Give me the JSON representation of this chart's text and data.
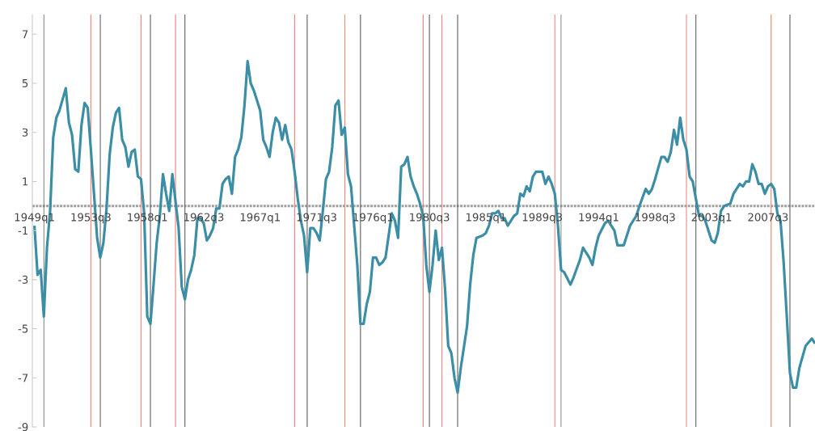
{
  "chart_data": {
    "type": "line",
    "xlim": [
      "1948-11",
      "2011-04"
    ],
    "ylim": [
      -9,
      7.8
    ],
    "xticks": [
      {
        "value": "1949-01",
        "label": "1949q1"
      },
      {
        "value": "1953-07",
        "label": "1953q3"
      },
      {
        "value": "1958-01",
        "label": "1958q1"
      },
      {
        "value": "1962-07",
        "label": "1962q3"
      },
      {
        "value": "1967-01",
        "label": "1967q1"
      },
      {
        "value": "1971-07",
        "label": "1971q3"
      },
      {
        "value": "1976-01",
        "label": "1976q1"
      },
      {
        "value": "1980-07",
        "label": "1980q3"
      },
      {
        "value": "1985-01",
        "label": "1985q1"
      },
      {
        "value": "1989-07",
        "label": "1989q3"
      },
      {
        "value": "1994-01",
        "label": "1994q1"
      },
      {
        "value": "1998-07",
        "label": "1998q3"
      },
      {
        "value": "2003-01",
        "label": "2003q1"
      },
      {
        "value": "2007-07",
        "label": "2007q3"
      }
    ],
    "yticks": [
      -9,
      -7,
      -5,
      -3,
      -1,
      1,
      3,
      5,
      7
    ],
    "series": [
      {
        "color": "#3b8ea5",
        "x": [
          "1949-01",
          "1949-04",
          "1949-07",
          "1949-10",
          "1950-01",
          "1950-04",
          "1950-07",
          "1950-10",
          "1951-01",
          "1951-07",
          "1951-10",
          "1952-01",
          "1952-04",
          "1952-07",
          "1952-10",
          "1953-01",
          "1953-04",
          "1953-07",
          "1953-10",
          "1954-01",
          "1954-04",
          "1954-07",
          "1954-10",
          "1955-01",
          "1955-04",
          "1955-07",
          "1955-10",
          "1956-01",
          "1956-04",
          "1956-07",
          "1956-10",
          "1957-01",
          "1957-04",
          "1957-07",
          "1957-10",
          "1958-01",
          "1958-04",
          "1958-07",
          "1958-10",
          "1959-01",
          "1959-04",
          "1959-07",
          "1959-10",
          "1960-01",
          "1960-04",
          "1960-07",
          "1960-10",
          "1961-01",
          "1961-04",
          "1961-07",
          "1961-10",
          "1962-01",
          "1962-04",
          "1962-07",
          "1962-10",
          "1963-01",
          "1963-04",
          "1963-07",
          "1963-10",
          "1964-01",
          "1964-04",
          "1964-07",
          "1964-10",
          "1965-01",
          "1965-04",
          "1965-07",
          "1965-10",
          "1966-01",
          "1966-04",
          "1966-07",
          "1966-10",
          "1967-01",
          "1967-04",
          "1967-07",
          "1967-10",
          "1968-01",
          "1968-04",
          "1968-07",
          "1968-10",
          "1969-01",
          "1969-04",
          "1969-07",
          "1969-10",
          "1970-01",
          "1970-04",
          "1970-07",
          "1970-10",
          "1971-01",
          "1971-04",
          "1971-07",
          "1971-10",
          "1972-01",
          "1972-04",
          "1972-07",
          "1972-10",
          "1973-01",
          "1973-04",
          "1973-07",
          "1973-10",
          "1974-01",
          "1974-04",
          "1974-07",
          "1974-10",
          "1975-01",
          "1975-04",
          "1975-07",
          "1975-10",
          "1976-01",
          "1976-04",
          "1976-07",
          "1976-10",
          "1977-01",
          "1977-04",
          "1977-07",
          "1977-10",
          "1978-01",
          "1978-04",
          "1978-07",
          "1978-10",
          "1979-01",
          "1979-04",
          "1979-07",
          "1979-10",
          "1980-01",
          "1980-04",
          "1980-07",
          "1980-10",
          "1981-01",
          "1981-04",
          "1981-07",
          "1981-10",
          "1982-01",
          "1982-04",
          "1982-07",
          "1982-10",
          "1983-01",
          "1983-07",
          "1983-10",
          "1984-01",
          "1984-04",
          "1984-10",
          "1985-01",
          "1985-04",
          "1985-07",
          "1985-10",
          "1986-01",
          "1986-04",
          "1986-07",
          "1986-10",
          "1987-01",
          "1987-04",
          "1987-07",
          "1987-10",
          "1988-01",
          "1988-04",
          "1988-07",
          "1988-10",
          "1989-01",
          "1989-07",
          "1989-10",
          "1990-01",
          "1990-04",
          "1990-07",
          "1990-10",
          "1991-01",
          "1991-04",
          "1991-10",
          "1992-01",
          "1992-07",
          "1992-10",
          "1993-04",
          "1993-07",
          "1993-10",
          "1994-01",
          "1994-07",
          "1994-10",
          "1995-04",
          "1995-07",
          "1995-10",
          "1996-01",
          "1996-07",
          "1996-10",
          "1997-01",
          "1997-04",
          "1997-10",
          "1998-01",
          "1998-04",
          "1998-07",
          "1999-01",
          "1999-04",
          "1999-07",
          "1999-10",
          "2000-01",
          "2000-04",
          "2000-07",
          "2000-10",
          "2001-01",
          "2001-04",
          "2001-07",
          "2001-10",
          "2002-01",
          "2002-04",
          "2002-07",
          "2003-01",
          "2003-04",
          "2003-07",
          "2003-10",
          "2004-01",
          "2004-07",
          "2004-10",
          "2005-04",
          "2005-07",
          "2005-10",
          "2006-01",
          "2006-04",
          "2006-07",
          "2006-10",
          "2007-01",
          "2007-04",
          "2007-07",
          "2007-10",
          "2008-01",
          "2008-04",
          "2008-07",
          "2008-10",
          "2009-01",
          "2009-04",
          "2009-07",
          "2009-10",
          "2010-01",
          "2010-07",
          "2011-01",
          "2011-04"
        ],
        "values": [
          -0.8,
          -2.8,
          -2.6,
          -4.5,
          -1.7,
          -0.2,
          2.8,
          3.6,
          3.9,
          4.8,
          3.4,
          2.9,
          1.5,
          1.4,
          3.3,
          4.2,
          4.0,
          2.3,
          0.5,
          -1.3,
          -2.1,
          -1.5,
          -0.1,
          2.1,
          3.2,
          3.8,
          4.0,
          2.7,
          2.4,
          1.6,
          2.2,
          2.3,
          1.2,
          1.1,
          -0.3,
          -4.5,
          -4.8,
          -3.2,
          -1.5,
          -0.4,
          1.3,
          0.5,
          -0.2,
          1.3,
          0.2,
          -0.9,
          -3.3,
          -3.8,
          -3.0,
          -2.6,
          -2.0,
          -0.5,
          -0.5,
          -0.7,
          -1.4,
          -1.2,
          -0.9,
          -0.1,
          -0.1,
          0.9,
          1.1,
          1.2,
          0.5,
          2.0,
          2.3,
          2.8,
          4.1,
          5.9,
          5.0,
          4.7,
          4.3,
          3.9,
          2.7,
          2.4,
          2.0,
          3.0,
          3.6,
          3.4,
          2.7,
          3.3,
          2.6,
          2.3,
          1.4,
          0.3,
          -0.6,
          -1.2,
          -2.7,
          -0.9,
          -0.9,
          -1.1,
          -1.4,
          -0.2,
          1.1,
          1.4,
          2.4,
          4.1,
          4.3,
          2.9,
          3.2,
          1.3,
          0.8,
          -0.8,
          -2.4,
          -4.8,
          -4.8,
          -4.0,
          -3.5,
          -2.1,
          -2.1,
          -2.4,
          -2.3,
          -2.1,
          -1.2,
          -0.3,
          -0.6,
          -1.3,
          1.6,
          1.7,
          2.0,
          1.2,
          0.8,
          0.5,
          0.1,
          -0.4,
          -2.4,
          -3.5,
          -2.4,
          -1.0,
          -2.2,
          -1.7,
          -3.4,
          -5.7,
          -6.0,
          -7.0,
          -7.6,
          -6.6,
          -4.9,
          -3.2,
          -2.0,
          -1.3,
          -1.2,
          -1.1,
          -0.8,
          -0.3,
          -0.3,
          -0.2,
          -0.5,
          -0.5,
          -0.8,
          -0.6,
          -0.4,
          -0.3,
          0.5,
          0.4,
          0.8,
          0.6,
          1.2,
          1.4,
          1.4,
          0.9,
          1.2,
          0.9,
          0.5,
          -0.8,
          -2.6,
          -2.7,
          -3.2,
          -2.9,
          -2.2,
          -1.7,
          -2.1,
          -2.4,
          -1.7,
          -1.2,
          -0.7,
          -0.6,
          -1.0,
          -1.6,
          -1.6,
          -1.6,
          -0.8,
          -0.6,
          -0.4,
          0.0,
          0.7,
          0.5,
          0.7,
          1.1,
          2.0,
          2.0,
          1.8,
          2.2,
          3.1,
          2.5,
          3.6,
          2.7,
          2.3,
          1.2,
          1.0,
          0.3,
          -0.4,
          -0.4,
          -0.6,
          -1.4,
          -1.5,
          -1.1,
          -0.2,
          0.0,
          0.1,
          0.5,
          0.9,
          0.8,
          1.0,
          1.0,
          1.7,
          1.4,
          0.9,
          0.9,
          0.5,
          0.8,
          0.9,
          0.7,
          -0.3,
          -0.6,
          -2.3,
          -4.5,
          -6.8,
          -7.4,
          -7.4,
          -6.6,
          -5.7,
          -5.4,
          -5.6
        ]
      }
    ],
    "ref_lines": [
      {
        "axis": "y",
        "value": 0,
        "color": "#a0a0a0",
        "line_style": "dotted"
      },
      {
        "axis": "x",
        "value": "1953-07",
        "color": "#ec8a80"
      },
      {
        "axis": "x",
        "value": "1957-07",
        "color": "#ec8a80"
      },
      {
        "axis": "x",
        "value": "1960-04",
        "color": "#ec8a80"
      },
      {
        "axis": "x",
        "value": "1969-10",
        "color": "#ec8a80"
      },
      {
        "axis": "x",
        "value": "1973-10",
        "color": "#ec8a80"
      },
      {
        "axis": "x",
        "value": "1980-01",
        "color": "#ec8a80"
      },
      {
        "axis": "x",
        "value": "1981-07",
        "color": "#ec8a80"
      },
      {
        "axis": "x",
        "value": "1990-07",
        "color": "#ec8a80"
      },
      {
        "axis": "x",
        "value": "2001-01",
        "color": "#ec8a80"
      },
      {
        "axis": "x",
        "value": "2007-10",
        "color": "#ec8a80"
      },
      {
        "axis": "x",
        "value": "1949-10",
        "color": "#6a6a6a"
      },
      {
        "axis": "x",
        "value": "1954-04",
        "color": "#6a6a6a"
      },
      {
        "axis": "x",
        "value": "1958-04",
        "color": "#6a6a6a"
      },
      {
        "axis": "x",
        "value": "1961-01",
        "color": "#6a6a6a"
      },
      {
        "axis": "x",
        "value": "1970-10",
        "color": "#6a6a6a"
      },
      {
        "axis": "x",
        "value": "1975-01",
        "color": "#6a6a6a"
      },
      {
        "axis": "x",
        "value": "1980-07",
        "color": "#6a6a6a"
      },
      {
        "axis": "x",
        "value": "1982-10",
        "color": "#6a6a6a"
      },
      {
        "axis": "x",
        "value": "1991-01",
        "color": "#6a6a6a"
      },
      {
        "axis": "x",
        "value": "2001-10",
        "color": "#6a6a6a"
      },
      {
        "axis": "x",
        "value": "2009-04",
        "color": "#6a6a6a"
      }
    ]
  }
}
